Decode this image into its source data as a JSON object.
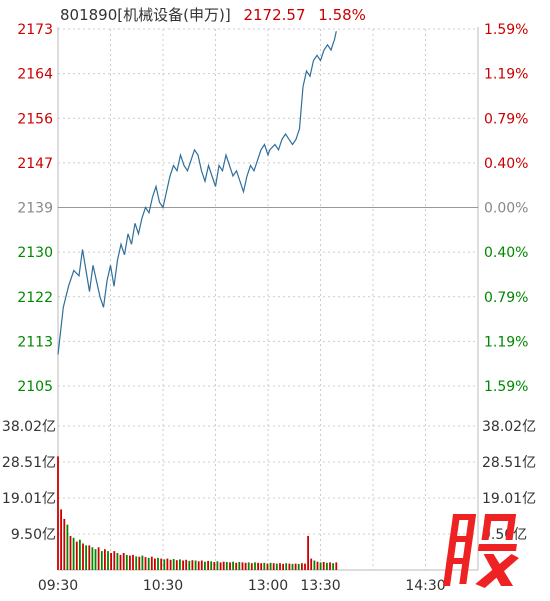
{
  "header": {
    "code_name": "801890[机械设备(申万)]",
    "price": "2172.57",
    "change_pct": "1.58%"
  },
  "logo_text": "股",
  "colors": {
    "up": "#cc0000",
    "down": "#008800",
    "flat": "#888888",
    "line": "#2f6f9a",
    "grid": "#cccccc"
  },
  "chart_data": {
    "type": "line",
    "title": "801890[机械设备(申万)] 2172.57 1.58%",
    "price_axis": {
      "ylim": [
        2105,
        2173
      ],
      "left_ticks": [
        "2173",
        "2164",
        "2156",
        "2147",
        "2139",
        "2130",
        "2122",
        "2113",
        "2105"
      ],
      "right_ticks": [
        "1.59%",
        "1.19%",
        "0.79%",
        "0.40%",
        "0.00%",
        "0.40%",
        "0.79%",
        "1.19%",
        "1.59%"
      ],
      "tick_colors": [
        "up",
        "up",
        "up",
        "up",
        "flat",
        "down",
        "down",
        "down",
        "down"
      ]
    },
    "volume_axis": {
      "ylim": [
        0,
        38.02
      ],
      "left_ticks": [
        "38.02亿",
        "28.51亿",
        "19.01亿",
        "9.50亿"
      ],
      "right_ticks": [
        "38.02亿",
        "28.51亿",
        "19.01亿",
        "9.50亿"
      ]
    },
    "x_ticks": [
      "09:30",
      "10:30",
      "13:00",
      "13:30",
      "14:30"
    ],
    "xlim_minutes": [
      0,
      240
    ],
    "series": [
      {
        "kind": "price",
        "points": [
          [
            0,
            2111
          ],
          [
            3,
            2120
          ],
          [
            6,
            2124
          ],
          [
            9,
            2127
          ],
          [
            12,
            2126
          ],
          [
            14,
            2131
          ],
          [
            16,
            2127
          ],
          [
            18,
            2123
          ],
          [
            20,
            2128
          ],
          [
            22,
            2125
          ],
          [
            24,
            2122
          ],
          [
            26,
            2120
          ],
          [
            28,
            2125
          ],
          [
            30,
            2128
          ],
          [
            32,
            2124
          ],
          [
            34,
            2129
          ],
          [
            36,
            2132
          ],
          [
            38,
            2130
          ],
          [
            40,
            2134
          ],
          [
            42,
            2132
          ],
          [
            44,
            2136
          ],
          [
            46,
            2134
          ],
          [
            48,
            2137
          ],
          [
            50,
            2139
          ],
          [
            52,
            2138
          ],
          [
            54,
            2141
          ],
          [
            56,
            2143
          ],
          [
            58,
            2140
          ],
          [
            60,
            2139
          ],
          [
            62,
            2142
          ],
          [
            64,
            2145
          ],
          [
            66,
            2147
          ],
          [
            68,
            2146
          ],
          [
            70,
            2149
          ],
          [
            72,
            2147
          ],
          [
            74,
            2146
          ],
          [
            76,
            2148
          ],
          [
            78,
            2150
          ],
          [
            80,
            2149
          ],
          [
            82,
            2146
          ],
          [
            84,
            2144
          ],
          [
            86,
            2147
          ],
          [
            88,
            2145
          ],
          [
            90,
            2143
          ],
          [
            92,
            2147
          ],
          [
            94,
            2146
          ],
          [
            96,
            2149
          ],
          [
            98,
            2147
          ],
          [
            100,
            2145
          ],
          [
            102,
            2146
          ],
          [
            104,
            2144
          ],
          [
            106,
            2142
          ],
          [
            108,
            2145
          ],
          [
            110,
            2147
          ],
          [
            112,
            2146
          ],
          [
            114,
            2148
          ],
          [
            116,
            2150
          ],
          [
            118,
            2151
          ],
          [
            120,
            2149
          ],
          [
            121,
            2150
          ],
          [
            124,
            2151
          ],
          [
            126,
            2150
          ],
          [
            128,
            2152
          ],
          [
            130,
            2153
          ],
          [
            132,
            2152
          ],
          [
            134,
            2151
          ],
          [
            136,
            2152
          ],
          [
            138,
            2154
          ],
          [
            140,
            2162
          ],
          [
            142,
            2165
          ],
          [
            144,
            2164
          ],
          [
            146,
            2167
          ],
          [
            148,
            2168
          ],
          [
            150,
            2167
          ],
          [
            152,
            2169
          ],
          [
            154,
            2170
          ],
          [
            156,
            2169
          ],
          [
            158,
            2171
          ],
          [
            159,
            2172.57
          ]
        ]
      },
      {
        "kind": "volume",
        "values": [
          30.0,
          16.0,
          13.5,
          12.0,
          9.0,
          8.5,
          7.5,
          8.0,
          7.0,
          6.5,
          6.5,
          6.0,
          5.5,
          6.0,
          5.0,
          5.5,
          5.0,
          4.5,
          5.0,
          4.5,
          4.0,
          4.5,
          4.0,
          3.8,
          4.0,
          3.6,
          3.5,
          3.8,
          3.4,
          3.2,
          3.5,
          3.0,
          3.2,
          3.0,
          2.8,
          3.0,
          2.7,
          2.9,
          2.6,
          2.8,
          2.5,
          2.7,
          2.4,
          2.6,
          2.5,
          2.3,
          2.5,
          2.2,
          2.4,
          2.3,
          2.1,
          2.3,
          2.0,
          2.2,
          2.1,
          2.0,
          2.2,
          1.9,
          2.1,
          2.0,
          1.9,
          2.0,
          1.8,
          2.0,
          1.9,
          1.8,
          1.9,
          1.7,
          1.9,
          1.8,
          1.7,
          1.8,
          1.6,
          1.8,
          1.7,
          1.6,
          1.7,
          1.6,
          1.8,
          1.7,
          9.0,
          3.0,
          2.5,
          2.2,
          2.0,
          2.1,
          1.9,
          2.0,
          1.8,
          2.0
        ],
        "colors": [
          "up",
          "up",
          "up",
          "down",
          "up",
          "down",
          "up",
          "down",
          "up",
          "down",
          "up",
          "down",
          "down",
          "up",
          "down",
          "up",
          "down",
          "up",
          "up",
          "down",
          "up",
          "up",
          "down",
          "up",
          "up",
          "down",
          "up",
          "down",
          "up",
          "down",
          "up",
          "up",
          "down",
          "up",
          "down",
          "up",
          "up",
          "down",
          "up",
          "down",
          "up",
          "up",
          "down",
          "up",
          "down",
          "up",
          "up",
          "down",
          "up",
          "down",
          "up",
          "down",
          "up",
          "up",
          "down",
          "up",
          "down",
          "up",
          "down",
          "up",
          "up",
          "down",
          "up",
          "down",
          "up",
          "up",
          "down",
          "up",
          "down",
          "up",
          "down",
          "up",
          "up",
          "down",
          "up",
          "down",
          "up",
          "down",
          "up",
          "up",
          "up",
          "up",
          "down",
          "up",
          "down",
          "up",
          "down",
          "up",
          "down",
          "up"
        ]
      }
    ],
    "grid": true
  }
}
